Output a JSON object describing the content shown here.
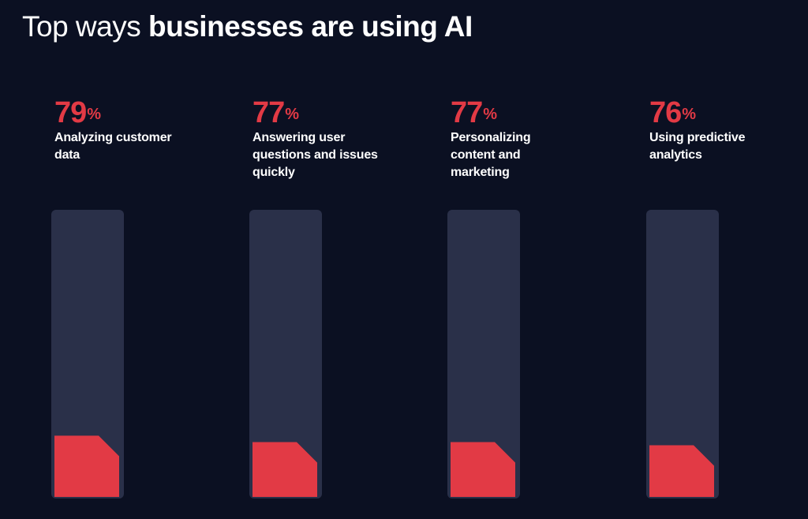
{
  "title": {
    "prefix": "Top ways ",
    "bold": "businesses are using AI"
  },
  "colors": {
    "background": "#0b1022",
    "track": "#2a3049",
    "bar": "#e23a45",
    "accent": "#e23a45",
    "text": "#ffffff"
  },
  "chart_data": {
    "type": "bar",
    "title": "Top ways businesses are using AI",
    "categories": [
      "Analyzing customer data",
      "Answering user questions and issues quickly",
      "Personalizing content and marketing",
      "Using predictive analytics"
    ],
    "values": [
      79,
      77,
      77,
      76
    ],
    "value_labels": [
      "79",
      "77",
      "77",
      "76"
    ],
    "unit": "%",
    "ylim": [
      0,
      100
    ],
    "grid": false,
    "legend": "none"
  }
}
